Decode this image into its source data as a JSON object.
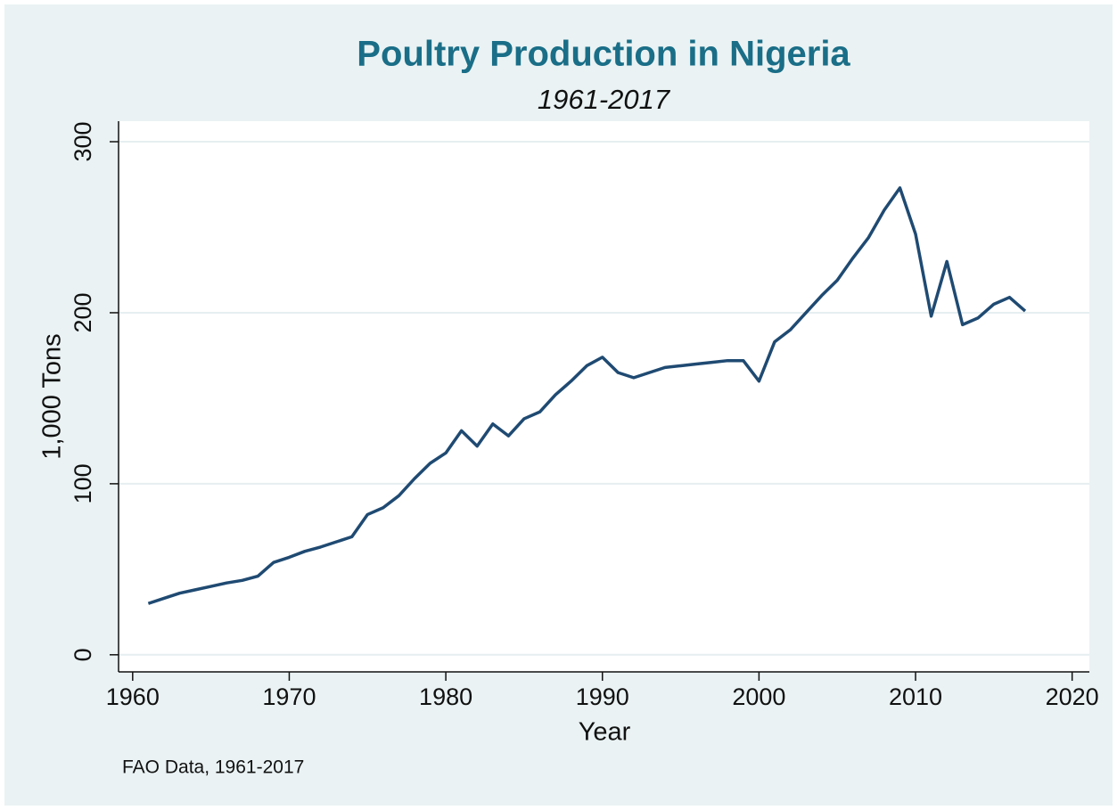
{
  "chart_data": {
    "type": "line",
    "title": "Poultry Production in Nigeria",
    "subtitle": "1961-2017",
    "x_label": "Year",
    "y_label": "1,000 Tons",
    "note": "FAO Data, 1961-2017",
    "x": [
      1961,
      1962,
      1963,
      1964,
      1965,
      1966,
      1967,
      1968,
      1969,
      1970,
      1971,
      1972,
      1973,
      1974,
      1975,
      1976,
      1977,
      1978,
      1979,
      1980,
      1981,
      1982,
      1983,
      1984,
      1985,
      1986,
      1987,
      1988,
      1989,
      1990,
      1991,
      1992,
      1993,
      1994,
      1995,
      1996,
      1997,
      1998,
      1999,
      2000,
      2001,
      2002,
      2003,
      2004,
      2005,
      2006,
      2007,
      2008,
      2009,
      2010,
      2011,
      2012,
      2013,
      2014,
      2015,
      2016,
      2017
    ],
    "series": [
      {
        "name": "Poultry production",
        "color": "#1f4a72",
        "values": [
          30,
          33,
          36,
          38,
          40,
          42,
          43.5,
          46,
          54,
          57,
          60.5,
          63,
          66,
          69,
          82,
          86,
          93,
          103,
          112,
          118,
          131,
          122,
          135,
          128,
          138,
          142,
          152,
          160,
          169,
          174,
          165,
          162,
          165,
          168,
          169,
          170,
          171,
          172,
          172,
          160,
          183,
          190,
          200,
          210,
          219,
          232,
          244,
          260,
          273,
          246,
          198,
          230,
          193,
          197,
          205,
          209,
          201
        ]
      }
    ],
    "xlim": [
      1959.1,
      2021.1
    ],
    "ylim": [
      -10,
      312
    ],
    "xticks": [
      1960,
      1970,
      1980,
      1990,
      2000,
      2010,
      2020
    ],
    "yticks": [
      0,
      100,
      200,
      300
    ],
    "grid": true
  }
}
